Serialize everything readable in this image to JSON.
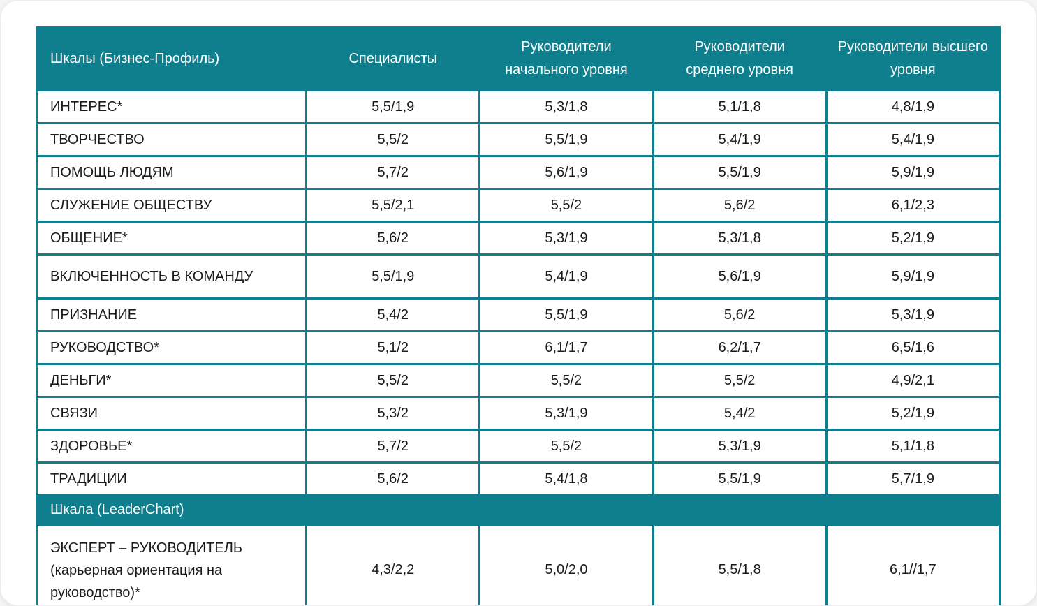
{
  "colors": {
    "header_bg": "#0f7e8d",
    "border": "#0f7e8d",
    "header_text": "#ffffff",
    "body_text": "#1b1b1b",
    "row_bg": "#ffffff"
  },
  "chart_data": {
    "type": "table",
    "columns": [
      "Шкалы (Бизнес-Профиль)",
      "Специалисты",
      "Руководители начального уровня",
      "Руководители среднего уровня",
      "Руководители высшего уровня"
    ],
    "rows": [
      {
        "label": "ИНТЕРЕС*",
        "values": [
          "5,5/1,9",
          "5,3/1,8",
          "5,1/1,8",
          "4,8/1,9"
        ]
      },
      {
        "label": "ТВОРЧЕСТВО",
        "values": [
          "5,5/2",
          "5,5/1,9",
          "5,4/1,9",
          "5,4/1,9"
        ]
      },
      {
        "label": "ПОМОЩЬ ЛЮДЯМ",
        "values": [
          "5,7/2",
          "5,6/1,9",
          "5,5/1,9",
          "5,9/1,9"
        ]
      },
      {
        "label": "СЛУЖЕНИЕ ОБЩЕСТВУ",
        "values": [
          "5,5/2,1",
          "5,5/2",
          "5,6/2",
          "6,1/2,3"
        ]
      },
      {
        "label": "ОБЩЕНИЕ*",
        "values": [
          "5,6/2",
          "5,3/1,9",
          "5,3/1,8",
          "5,2/1,9"
        ]
      },
      {
        "label": "ВКЛЮЧЕННОСТЬ В КОМАНДУ",
        "values": [
          "5,5/1,9",
          "5,4/1,9",
          "5,6/1,9",
          "5,9/1,9"
        ]
      },
      {
        "label": "ПРИЗНАНИЕ",
        "values": [
          "5,4/2",
          "5,5/1,9",
          "5,6/2",
          "5,3/1,9"
        ]
      },
      {
        "label": "РУКОВОДСТВО*",
        "values": [
          "5,1/2",
          "6,1/1,7",
          "6,2/1,7",
          "6,5/1,6"
        ]
      },
      {
        "label": "ДЕНЬГИ*",
        "values": [
          "5,5/2",
          "5,5/2",
          "5,5/2",
          "4,9/2,1"
        ]
      },
      {
        "label": "СВЯЗИ",
        "values": [
          "5,3/2",
          "5,3/1,9",
          "5,4/2",
          "5,2/1,9"
        ]
      },
      {
        "label": "ЗДОРОВЬЕ*",
        "values": [
          "5,7/2",
          "5,5/2",
          "5,3/1,9",
          "5,1/1,8"
        ]
      },
      {
        "label": "ТРАДИЦИИ",
        "values": [
          "5,6/2",
          "5,4/1,8",
          "5,5/1,9",
          "5,7/1,9"
        ]
      }
    ],
    "section_header": "Шкала (LeaderChart)",
    "section_rows": [
      {
        "label": "ЭКСПЕРТ – РУКОВОДИТЕЛЬ (карьерная ориентация на руководство)*",
        "values": [
          "4,3/2,2",
          "5,0/2,0",
          "5,5/1,8",
          "6,1//1,7"
        ]
      }
    ]
  }
}
